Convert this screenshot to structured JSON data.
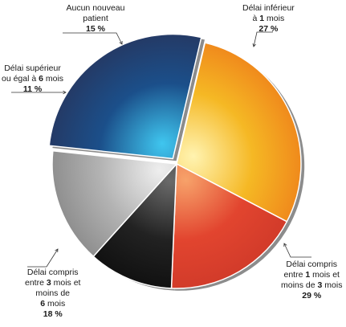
{
  "chart_data": {
    "type": "pie",
    "labels": [
      "Délai inférieur à 1 mois",
      "Délai compris entre 1 mois et moins de 3 mois",
      "Délai compris entre 3 mois et moins de 6 mois",
      "Délai supérieur ou égal à 6 mois",
      "Aucun nouveau patient"
    ],
    "values": [
      27,
      29,
      18,
      11,
      15
    ],
    "value_labels": [
      "27 %",
      "29 %",
      "18 %",
      "11 %",
      "15 %"
    ],
    "exploded_slice": "Délai inférieur à 1 mois",
    "colors": [
      "#1b4f8a",
      "#f3b624",
      "#e2452f",
      "#1d1d1d",
      "#b3b3b3"
    ]
  },
  "labels": {
    "s0": {
      "line1": "Délai inférieur",
      "line2_pre": "à ",
      "line2_bold": "1",
      "line2_post": " mois",
      "pct": "27 %"
    },
    "s1": {
      "line1": "Délai compris",
      "line2_pre": "entre ",
      "line2_bold": "1",
      "line2_post": " mois et",
      "line3_pre": "moins de ",
      "line3_bold": "3",
      "line3_post": " mois",
      "pct": "29 %"
    },
    "s2": {
      "line1": "Délai compris",
      "line2_pre": "entre ",
      "line2_bold": "3",
      "line2_post": " mois et",
      "line3": "moins de",
      "line4_bold": "6",
      "line4_post": " mois",
      "pct": "18 %"
    },
    "s3": {
      "line1": "Délai supérieur",
      "line2_pre": "ou égal à ",
      "line2_bold": "6",
      "line2_post": " mois",
      "pct": "11 %"
    },
    "s4": {
      "line1": "Aucun nouveau",
      "line2": "patient",
      "pct": "15 %"
    }
  }
}
